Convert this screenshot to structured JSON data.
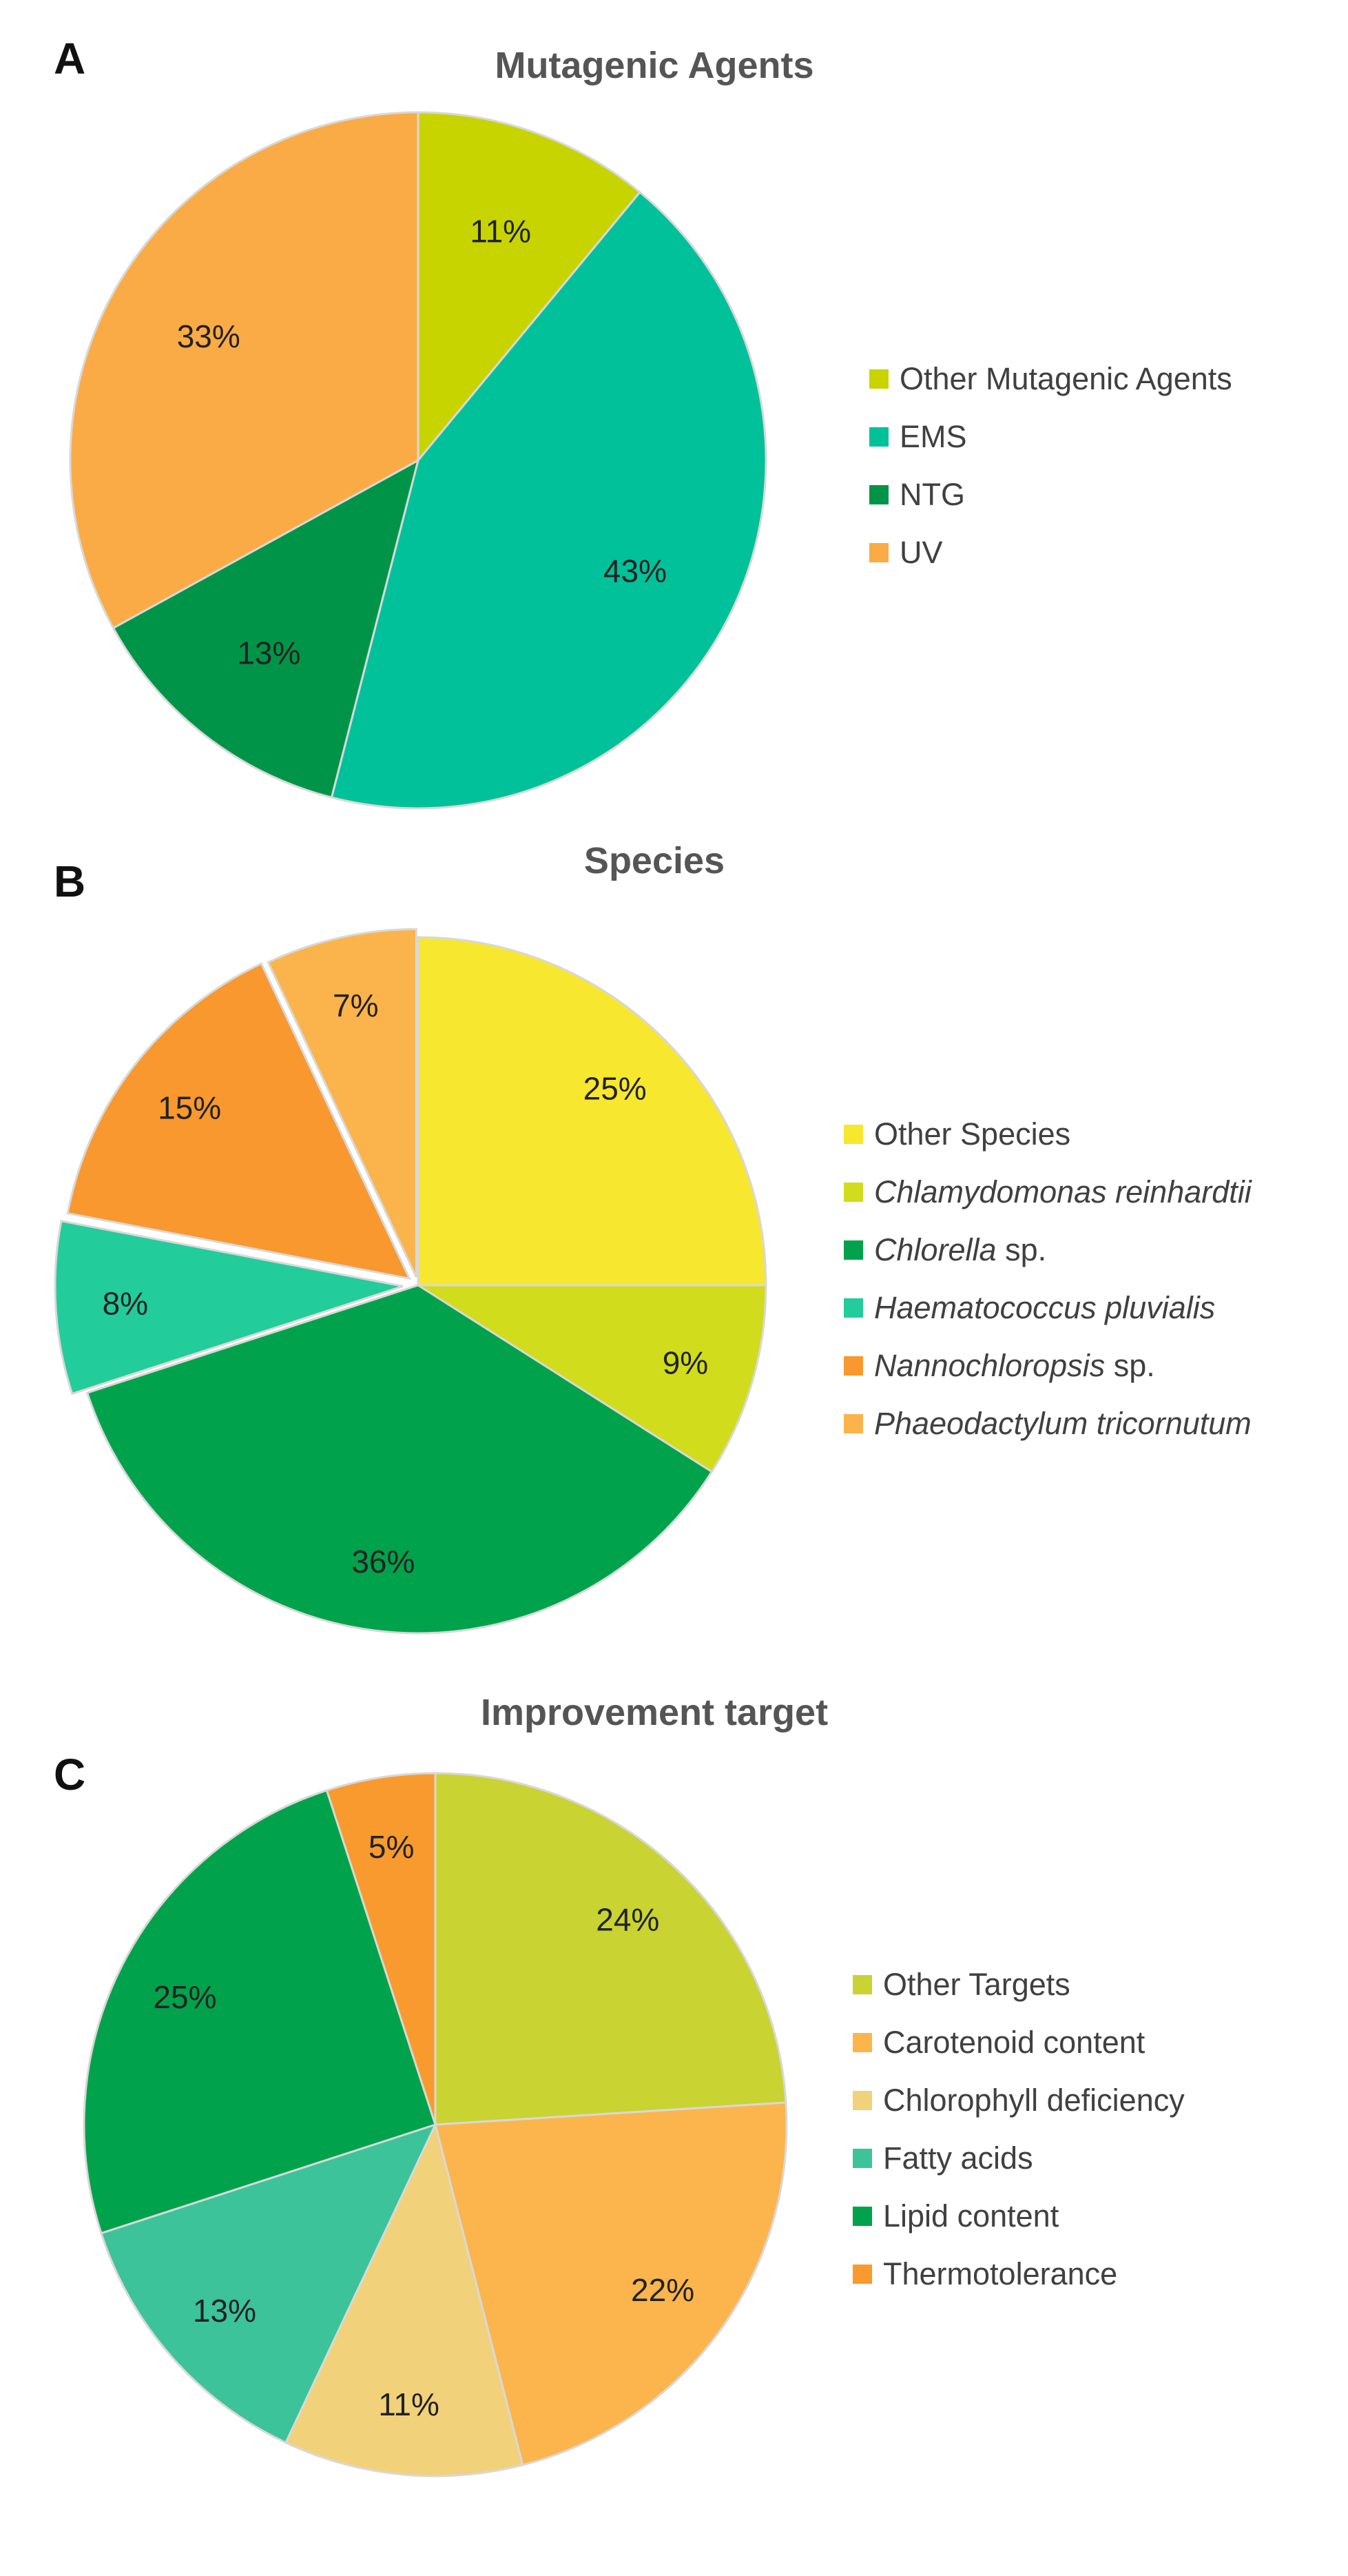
{
  "chart_data": [
    {
      "type": "pie",
      "panel": "A",
      "title": "Mutagenic Agents",
      "slices": [
        {
          "label": "Other Mutagenic Agents",
          "value": 11,
          "text": "11%",
          "color": "#c8d400"
        },
        {
          "label": "EMS",
          "value": 43,
          "text": "43%",
          "color": "#00c19a"
        },
        {
          "label": "NTG",
          "value": 13,
          "text": "13%",
          "color": "#009448"
        },
        {
          "label": "UV",
          "value": 33,
          "text": "33%",
          "color": "#fbab45"
        }
      ],
      "legend": [
        {
          "prefix": "Other Mutagenic Agents",
          "suffix": "",
          "color": "#c8d400"
        },
        {
          "prefix": "EMS",
          "suffix": "",
          "color": "#00c19a"
        },
        {
          "prefix": "NTG",
          "suffix": "",
          "color": "#009448"
        },
        {
          "prefix": "UV",
          "suffix": "",
          "color": "#fbab45"
        }
      ]
    },
    {
      "type": "pie",
      "panel": "B",
      "title": "Species",
      "slices": [
        {
          "label": "Other Species",
          "value": 25,
          "text": "25%",
          "color": "#f7e72f"
        },
        {
          "label": "Chlamydomonas reinhardtii",
          "value": 9,
          "text": "9%",
          "color": "#d1dc1c"
        },
        {
          "label": "Chlorella sp.",
          "value": 36,
          "text": "36%",
          "color": "#00a24c"
        },
        {
          "label": "Haematococcus pluvialis",
          "value": 8,
          "text": "8%",
          "color": "#22cc9b"
        },
        {
          "label": "Nannochloropsis sp.",
          "value": 15,
          "text": "15%",
          "color": "#f9982e"
        },
        {
          "label": "Phaeodactylum tricornutum",
          "value": 7,
          "text": "7%",
          "color": "#fbb44b"
        }
      ],
      "legend": [
        {
          "prefix": "Other Species",
          "suffix": "",
          "color": "#f7e72f"
        },
        {
          "prefix": "Chlamydomonas reinhardtii",
          "suffix": "",
          "color": "#d1dc1c"
        },
        {
          "prefix": "Chlorella",
          "suffix": " sp.",
          "color": "#00a24c"
        },
        {
          "prefix": "Haematococcus pluvialis",
          "suffix": "",
          "color": "#22cc9b"
        },
        {
          "prefix": "Nannochloropsis",
          "suffix": " sp.",
          "color": "#f9982e"
        },
        {
          "prefix": "Phaeodactylum tricornutum",
          "suffix": "",
          "color": "#fbb44b"
        }
      ]
    },
    {
      "type": "pie",
      "panel": "C",
      "title": "Improvement target",
      "slices": [
        {
          "label": "Other Targets",
          "value": 24,
          "text": "24%",
          "color": "#c9d332"
        },
        {
          "label": "Carotenoid content",
          "value": 22,
          "text": "22%",
          "color": "#fbb54c"
        },
        {
          "label": "Chlorophyll deficiency",
          "value": 11,
          "text": "11%",
          "color": "#f1d27a"
        },
        {
          "label": "Fatty acids",
          "value": 13,
          "text": "13%",
          "color": "#3cc399"
        },
        {
          "label": "Lipid content",
          "value": 25,
          "text": "25%",
          "color": "#00a24b"
        },
        {
          "label": "Thermotolerance",
          "value": 5,
          "text": "5%",
          "color": "#f99a2e"
        }
      ],
      "legend": [
        {
          "prefix": "Other Targets",
          "suffix": "",
          "color": "#c9d332"
        },
        {
          "prefix": "Carotenoid content",
          "suffix": "",
          "color": "#fbb54c"
        },
        {
          "prefix": "Chlorophyll deficiency",
          "suffix": "",
          "color": "#f1d27a"
        },
        {
          "prefix": "Fatty acids",
          "suffix": "",
          "color": "#3cc399"
        },
        {
          "prefix": "Lipid content",
          "suffix": "",
          "color": "#00a24b"
        },
        {
          "prefix": "Thermotolerance",
          "suffix": "",
          "color": "#f99a2e"
        }
      ]
    }
  ]
}
